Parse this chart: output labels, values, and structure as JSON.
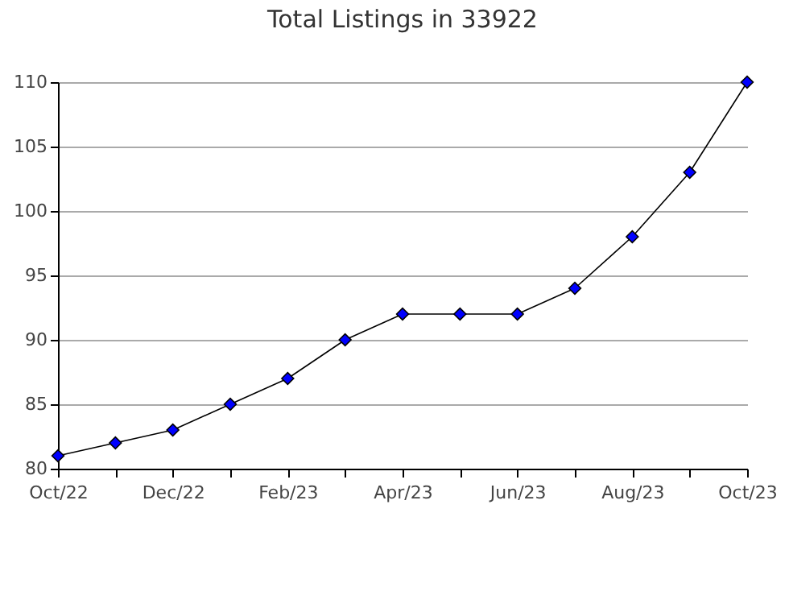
{
  "chart_data": {
    "type": "line",
    "title": "Total Listings in 33922",
    "categories": [
      "Oct/22",
      null,
      "Dec/22",
      null,
      "Feb/23",
      null,
      "Apr/23",
      null,
      "Jun/23",
      null,
      "Aug/23",
      null,
      "Oct/23"
    ],
    "series": [
      {
        "color": "#0000ff",
        "values": [
          81,
          82,
          83,
          85,
          87,
          90,
          92,
          92,
          92,
          94,
          98,
          103,
          110
        ]
      }
    ],
    "ylim": [
      80,
      110
    ],
    "yticks": [
      80,
      85,
      90,
      95,
      100,
      105,
      110
    ],
    "grid": "y",
    "marker": "diamond",
    "line_style": "solid"
  }
}
